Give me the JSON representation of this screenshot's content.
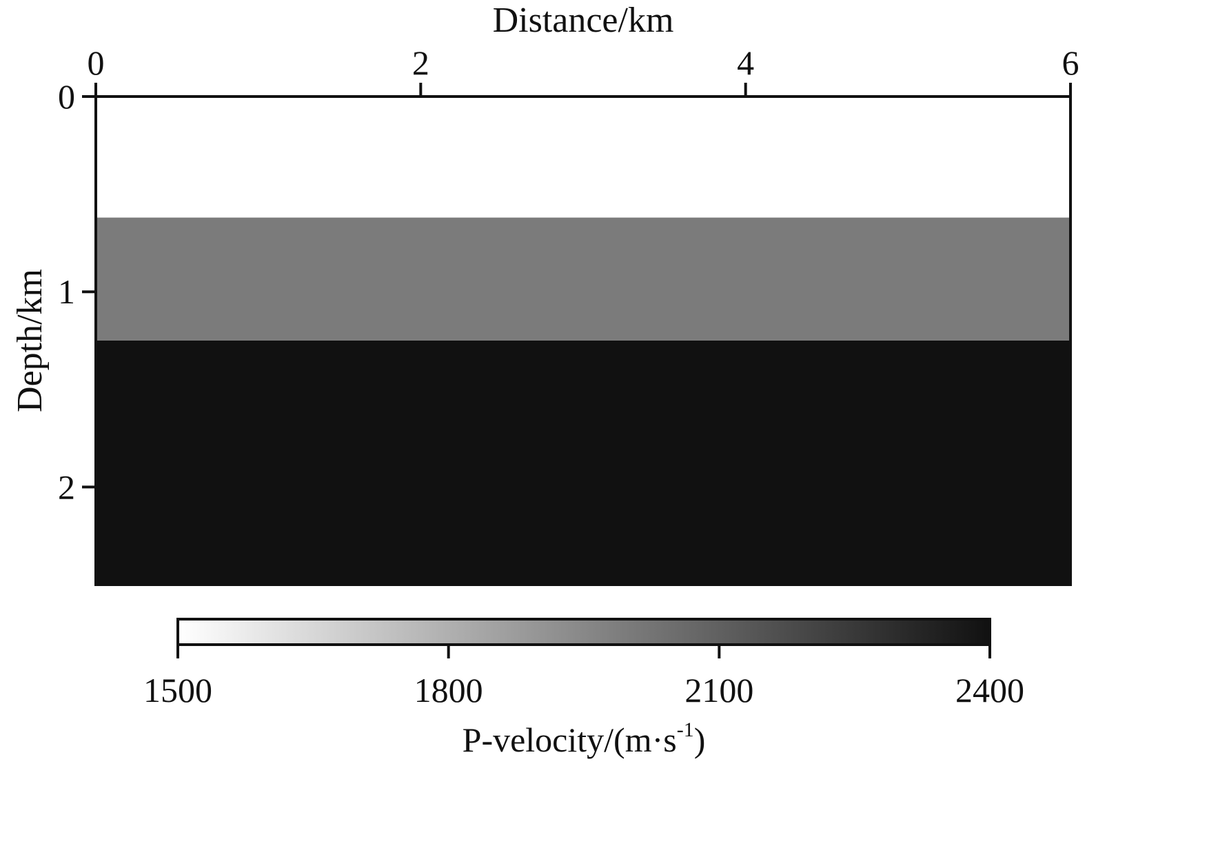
{
  "chart_data": {
    "type": "heatmap",
    "xlabel": "Distance/km",
    "ylabel": "Depth/km",
    "xlim": [
      0,
      6
    ],
    "ylim": [
      0,
      2.5
    ],
    "x_axis_position": "top",
    "y_axis_inverted": true,
    "xticks": [
      {
        "value": 0,
        "label": "0"
      },
      {
        "value": 2,
        "label": "2"
      },
      {
        "value": 4,
        "label": "4"
      },
      {
        "value": 6,
        "label": "6"
      }
    ],
    "yticks": [
      {
        "value": 0,
        "label": "0"
      },
      {
        "value": 1,
        "label": "1"
      },
      {
        "value": 2,
        "label": "2"
      }
    ],
    "layers": [
      {
        "depth_top": 0.0,
        "depth_bottom": 0.62,
        "velocity": 1500
      },
      {
        "depth_top": 0.62,
        "depth_bottom": 1.25,
        "velocity": 2000
      },
      {
        "depth_top": 1.25,
        "depth_bottom": 2.5,
        "velocity": 2400
      }
    ],
    "colorbar": {
      "label": "P-velocity/(m·s",
      "label_superscript": "-1",
      "label_suffix": ")",
      "range": [
        1500,
        2400
      ],
      "ticks": [
        {
          "value": 1500,
          "label": "1500"
        },
        {
          "value": 1800,
          "label": "1800"
        },
        {
          "value": 2100,
          "label": "2100"
        },
        {
          "value": 2400,
          "label": "2400"
        }
      ],
      "color_low": "#ffffff",
      "color_high": "#111111",
      "placement": "bottom"
    },
    "grid": false
  }
}
